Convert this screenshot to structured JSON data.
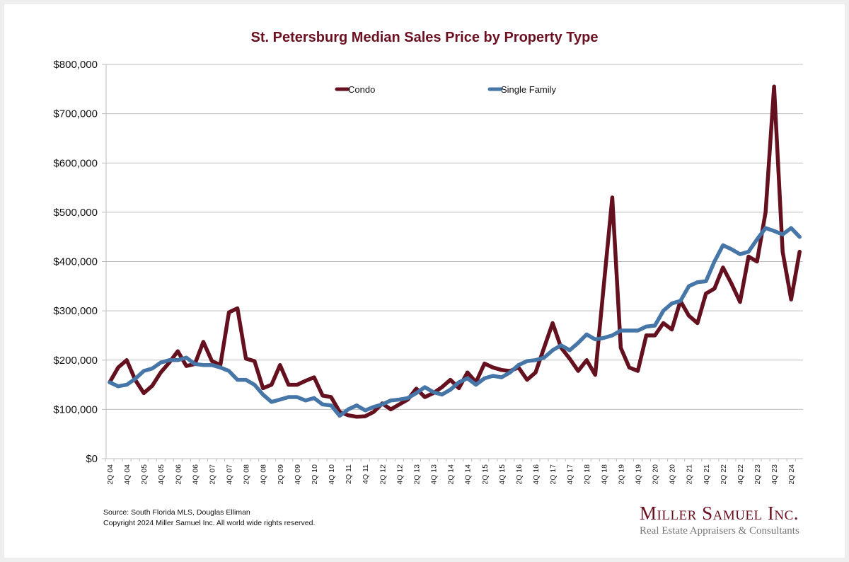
{
  "chart_data": {
    "type": "line",
    "title": "St. Petersburg Median Sales Price by Property Type",
    "xlabel": "",
    "ylabel": "",
    "ylim": [
      0,
      800000
    ],
    "y_ticks": [
      "$0",
      "$100,000",
      "$200,000",
      "$300,000",
      "$400,000",
      "$500,000",
      "$600,000",
      "$700,000",
      "$800,000"
    ],
    "y_tick_values": [
      0,
      100000,
      200000,
      300000,
      400000,
      500000,
      600000,
      700000,
      800000
    ],
    "grid": true,
    "legend_position": "top-center",
    "x": [
      "2Q 04",
      "3Q 04",
      "4Q 04",
      "1Q 05",
      "2Q 05",
      "3Q 05",
      "4Q 05",
      "1Q 06",
      "2Q 06",
      "3Q 06",
      "4Q 06",
      "1Q 07",
      "2Q 07",
      "3Q 07",
      "4Q 07",
      "1Q 08",
      "2Q 08",
      "3Q 08",
      "4Q 08",
      "1Q 09",
      "2Q 09",
      "3Q 09",
      "4Q 09",
      "1Q 10",
      "2Q 10",
      "3Q 10",
      "4Q 10",
      "1Q 11",
      "2Q 11",
      "3Q 11",
      "4Q 11",
      "1Q 12",
      "2Q 12",
      "3Q 12",
      "4Q 12",
      "1Q 13",
      "2Q 13",
      "3Q 13",
      "4Q 13",
      "1Q 14",
      "2Q 14",
      "3Q 14",
      "4Q 14",
      "1Q 15",
      "2Q 15",
      "3Q 15",
      "4Q 15",
      "1Q 16",
      "2Q 16",
      "3Q 16",
      "4Q 16",
      "1Q 17",
      "2Q 17",
      "3Q 17",
      "4Q 17",
      "1Q 18",
      "2Q 18",
      "3Q 18",
      "4Q 18",
      "1Q 19",
      "2Q 19",
      "3Q 19",
      "4Q 19",
      "1Q 20",
      "2Q 20",
      "3Q 20",
      "4Q 20",
      "1Q 21",
      "2Q 21",
      "3Q 21",
      "4Q 21",
      "1Q 22",
      "2Q 22",
      "3Q 22",
      "4Q 22",
      "1Q 23",
      "2Q 23",
      "3Q 23",
      "4Q 23",
      "1Q 24",
      "2Q 24",
      "3Q 24"
    ],
    "x_tick_labels": [
      "2Q 04",
      "4Q 04",
      "2Q 05",
      "4Q 05",
      "2Q 06",
      "4Q 06",
      "2Q 07",
      "4Q 07",
      "2Q 08",
      "4Q 08",
      "2Q 09",
      "4Q 09",
      "2Q 10",
      "4Q 10",
      "2Q 11",
      "4Q 11",
      "2Q 12",
      "4Q 12",
      "2Q 13",
      "4Q 13",
      "2Q 14",
      "4Q 14",
      "2Q 15",
      "4Q 15",
      "2Q 16",
      "4Q 16",
      "2Q 17",
      "4Q 17",
      "2Q 18",
      "4Q 18",
      "2Q 19",
      "4Q 19",
      "2Q 20",
      "4Q 20",
      "2Q 21",
      "4Q 21",
      "2Q 22",
      "4Q 22",
      "2Q 23",
      "4Q 23",
      "2Q 24"
    ],
    "series": [
      {
        "name": "Condo",
        "color": "#64101e",
        "values": [
          155000,
          185000,
          200000,
          160000,
          133000,
          148000,
          175000,
          195000,
          218000,
          188000,
          192000,
          237000,
          198000,
          190000,
          297000,
          305000,
          203000,
          198000,
          143000,
          150000,
          190000,
          150000,
          150000,
          158000,
          165000,
          128000,
          125000,
          95000,
          88000,
          85000,
          86000,
          95000,
          112000,
          100000,
          110000,
          120000,
          142000,
          125000,
          133000,
          145000,
          160000,
          143000,
          175000,
          155000,
          193000,
          185000,
          180000,
          178000,
          185000,
          160000,
          175000,
          225000,
          275000,
          225000,
          203000,
          178000,
          200000,
          170000,
          350000,
          530000,
          225000,
          185000,
          178000,
          250000,
          250000,
          275000,
          262000,
          320000,
          290000,
          275000,
          335000,
          345000,
          388000,
          355000,
          318000,
          410000,
          400000,
          500000,
          755000,
          420000,
          323000,
          420000
        ]
      },
      {
        "name": "Single Family",
        "color": "#4676a8",
        "values": [
          155000,
          147000,
          150000,
          162000,
          178000,
          183000,
          195000,
          200000,
          200000,
          205000,
          192000,
          190000,
          190000,
          185000,
          178000,
          160000,
          160000,
          150000,
          130000,
          115000,
          120000,
          125000,
          125000,
          118000,
          123000,
          110000,
          108000,
          87000,
          100000,
          108000,
          98000,
          105000,
          110000,
          118000,
          120000,
          123000,
          133000,
          145000,
          135000,
          130000,
          140000,
          155000,
          163000,
          150000,
          163000,
          168000,
          165000,
          175000,
          190000,
          198000,
          200000,
          205000,
          220000,
          230000,
          220000,
          235000,
          252000,
          242000,
          245000,
          250000,
          260000,
          260000,
          260000,
          268000,
          270000,
          300000,
          315000,
          320000,
          350000,
          358000,
          360000,
          400000,
          433000,
          425000,
          415000,
          420000,
          445000,
          468000,
          462000,
          455000,
          468000,
          450000
        ]
      }
    ]
  },
  "footer": {
    "source": "Source: South Florida MLS, Douglas Elliman",
    "copyright": "Copyright 2024 Miller Samuel Inc.  All world wide rights reserved."
  },
  "brand": {
    "name": "Miller Samuel Inc.",
    "tagline": "Real Estate Appraisers & Consultants"
  }
}
